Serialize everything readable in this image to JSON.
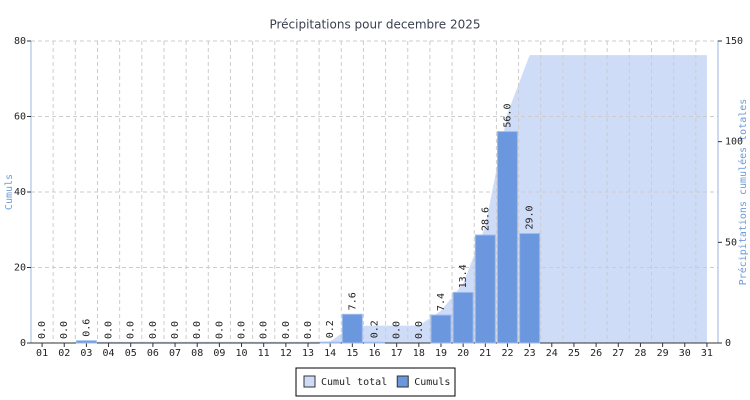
{
  "chart_data": {
    "type": "bar",
    "title": "Précipitations pour decembre 2025",
    "y_label": "Cumuls",
    "y2_label": "Précipitations cumulées totales",
    "categories": [
      "01",
      "02",
      "03",
      "04",
      "05",
      "06",
      "07",
      "08",
      "09",
      "10",
      "11",
      "12",
      "13",
      "14",
      "15",
      "16",
      "17",
      "18",
      "19",
      "20",
      "21",
      "22",
      "23",
      "24",
      "25",
      "26",
      "27",
      "28",
      "29",
      "30",
      "31"
    ],
    "ylim": [
      0,
      80
    ],
    "yticks": [
      0,
      20,
      40,
      60,
      80
    ],
    "y2lim": [
      0,
      150
    ],
    "y2ticks": [
      0,
      50,
      100,
      150
    ],
    "grid": true,
    "legend": "bottom",
    "series": [
      {
        "name": "Cumul total",
        "color": "#cfdcf8",
        "axis": "y2",
        "values": [
          0,
          0,
          0.6,
          0.6,
          0.6,
          0.6,
          0.6,
          0.6,
          0.6,
          0.6,
          0.6,
          0.6,
          0.6,
          0.8,
          8.4,
          8.6,
          8.6,
          8.6,
          16.0,
          29.4,
          58.0,
          114.0,
          143.0,
          143.0,
          143.0,
          143.0,
          143.0,
          143.0,
          143.0,
          143.0,
          143.0
        ]
      },
      {
        "name": "Cumuls",
        "color": "#6b97de",
        "values": [
          0,
          0,
          0.6,
          0,
          0,
          0,
          0,
          0,
          0,
          0,
          0,
          0,
          0,
          0.2,
          7.6,
          0.2,
          0,
          0,
          7.4,
          13.4,
          28.6,
          56,
          29,
          null,
          null,
          null,
          null,
          null,
          null,
          null,
          null
        ],
        "value_labels": [
          "0.0",
          "0.0",
          "0.6",
          "0.0",
          "0.0",
          "0.0",
          "0.0",
          "0.0",
          "0.0",
          "0.0",
          "0.0",
          "0.0",
          "0.0",
          "0.2",
          "7.6",
          "0.2",
          "0.0",
          "0.0",
          "7.4",
          "13.4",
          "28.6",
          "56.0",
          "29.0",
          null,
          null,
          null,
          null,
          null,
          null,
          null,
          null
        ]
      }
    ]
  }
}
